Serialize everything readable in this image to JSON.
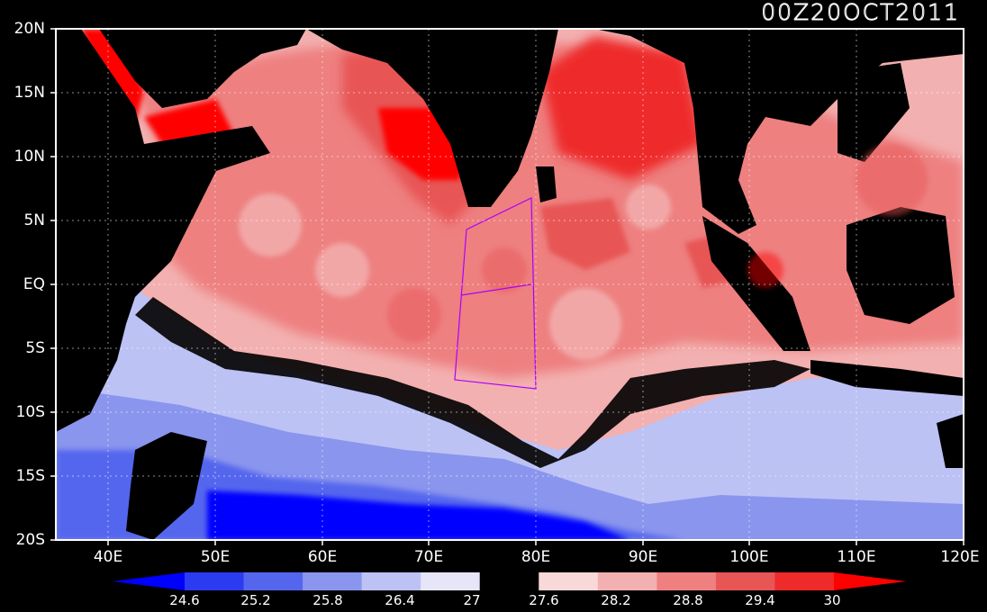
{
  "title": "00Z20OCT2011",
  "lat_labels": [
    "20N",
    "15N",
    "10N",
    "5N",
    "EQ",
    "5S",
    "10S",
    "15S",
    "20S"
  ],
  "lon_labels": [
    "40E",
    "50E",
    "60E",
    "70E",
    "80E",
    "90E",
    "100E",
    "110E",
    "120E"
  ],
  "colorbar": {
    "labels": [
      "24.6",
      "25.2",
      "25.8",
      "26.4",
      "27",
      "27.6",
      "28.2",
      "28.8",
      "29.4",
      "30"
    ],
    "colors": [
      "#0000ff",
      "#2b3bf0",
      "#5566ee",
      "#8a95ee",
      "#bcc2f4",
      "#e6e6f8",
      "#000000",
      "#f8d8d8",
      "#f3b0b0",
      "#ee8080",
      "#e85555",
      "#ee2a2a",
      "#ff0000"
    ]
  },
  "palette": {
    "land": "#000000",
    "cool_deep": "#0000ff",
    "cool_mid": "#5566ee",
    "cool_light": "#bcc2f4",
    "warm_light": "#f8d8d8",
    "warm_mid": "#ee8080",
    "warm_deep": "#ff0000",
    "box_outline": "#aa00ff"
  }
}
